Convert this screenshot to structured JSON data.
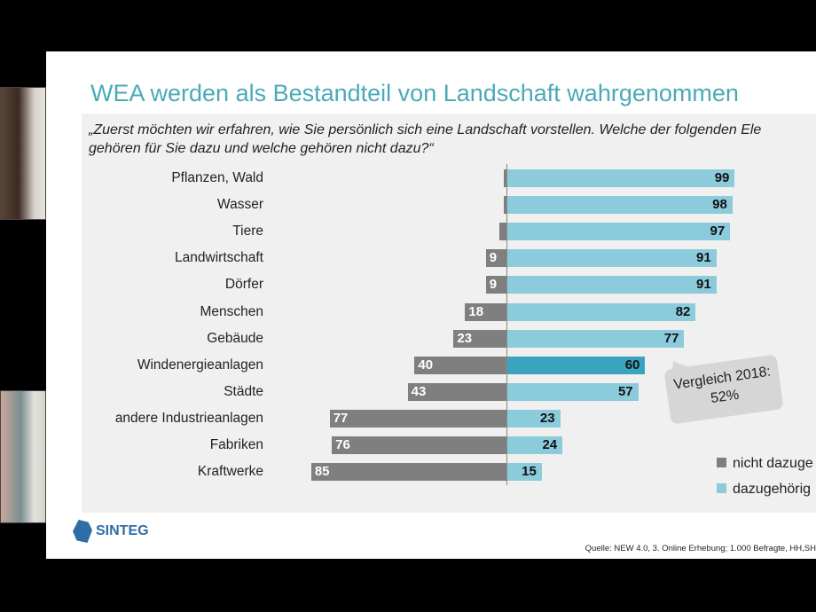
{
  "slide": {
    "title": "WEA werden als Bestandteil von Landschaft wahrgenommen",
    "question_line1": "„Zuerst möchten wir erfahren, wie Sie persönlich sich eine Landschaft vorstellen. Welche der folgenden Ele",
    "question_line2": "gehören für Sie dazu und welche gehören nicht dazu?“",
    "callout_line1": "Vergleich 2018:",
    "callout_line2": "52%",
    "source": "Quelle: NEW 4.0, 3. Online Erhebung; 1.000 Befragte, HH,SH",
    "logo_text": "SINTEG"
  },
  "chart_data": {
    "type": "bar",
    "orientation": "horizontal-diverging",
    "categories": [
      "Pflanzen, Wald",
      "Wasser",
      "Tiere",
      "Landwirtschaft",
      "Dörfer",
      "Menschen",
      "Gebäude",
      "Windenergieanlagen",
      "Städte",
      "andere Industrieanlagen",
      "Fabriken",
      "Kraftwerke"
    ],
    "series": [
      {
        "name": "nicht dazugehörig",
        "legend_label": "nicht dazuge",
        "color": "#7f7f7f",
        "values": [
          1,
          1,
          3,
          9,
          9,
          18,
          23,
          40,
          43,
          77,
          76,
          85
        ],
        "labels": [
          "",
          "",
          "",
          "9",
          "9",
          "18",
          "23",
          "40",
          "43",
          "77",
          "76",
          "85"
        ]
      },
      {
        "name": "dazugehörig",
        "legend_label": "dazugehörig",
        "color": "#8ccbdb",
        "values": [
          99,
          98,
          97,
          91,
          91,
          82,
          77,
          60,
          57,
          23,
          24,
          15
        ],
        "labels": [
          "99",
          "98",
          "97",
          "91",
          "91",
          "82",
          "77",
          "60",
          "57",
          "23",
          "24",
          "15"
        ]
      }
    ],
    "highlight_category": "Windenergieanlagen",
    "highlight_color": "#3aa3bd",
    "unit": "%",
    "grid": false,
    "legend_position": "bottom-right"
  }
}
